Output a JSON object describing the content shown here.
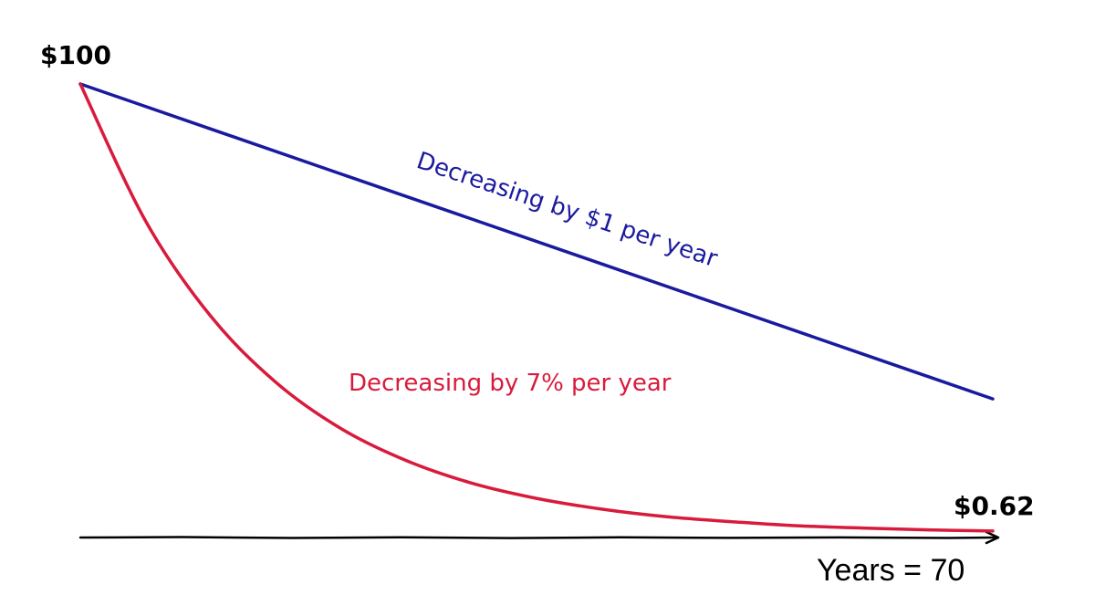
{
  "chart_data": {
    "type": "line",
    "x": {
      "min": 0,
      "max": 70,
      "label": "Years = 70"
    },
    "start_label": "$100",
    "end_label": "$0.62",
    "ylim": [
      0,
      100
    ],
    "grid": false,
    "legend": "none",
    "series": [
      {
        "key": "linear",
        "name": "Decreasing by $1 per year",
        "color": "#1a1a9e",
        "points": [
          [
            0,
            100
          ],
          [
            10,
            90
          ],
          [
            20,
            80
          ],
          [
            30,
            70
          ],
          [
            40,
            60
          ],
          [
            50,
            50
          ],
          [
            60,
            40
          ],
          [
            70,
            30
          ]
        ]
      },
      {
        "key": "exponential",
        "name": "Decreasing by 7% per year",
        "color": "#d81b3c",
        "points": [
          [
            0,
            100
          ],
          [
            5,
            69.6
          ],
          [
            10,
            48.4
          ],
          [
            15,
            33.7
          ],
          [
            20,
            23.4
          ],
          [
            25,
            16.3
          ],
          [
            30,
            11.3
          ],
          [
            35,
            7.9
          ],
          [
            40,
            5.5
          ],
          [
            45,
            3.8
          ],
          [
            50,
            2.7
          ],
          [
            55,
            1.8
          ],
          [
            60,
            1.3
          ],
          [
            65,
            0.9
          ],
          [
            70,
            0.62
          ]
        ]
      }
    ]
  }
}
